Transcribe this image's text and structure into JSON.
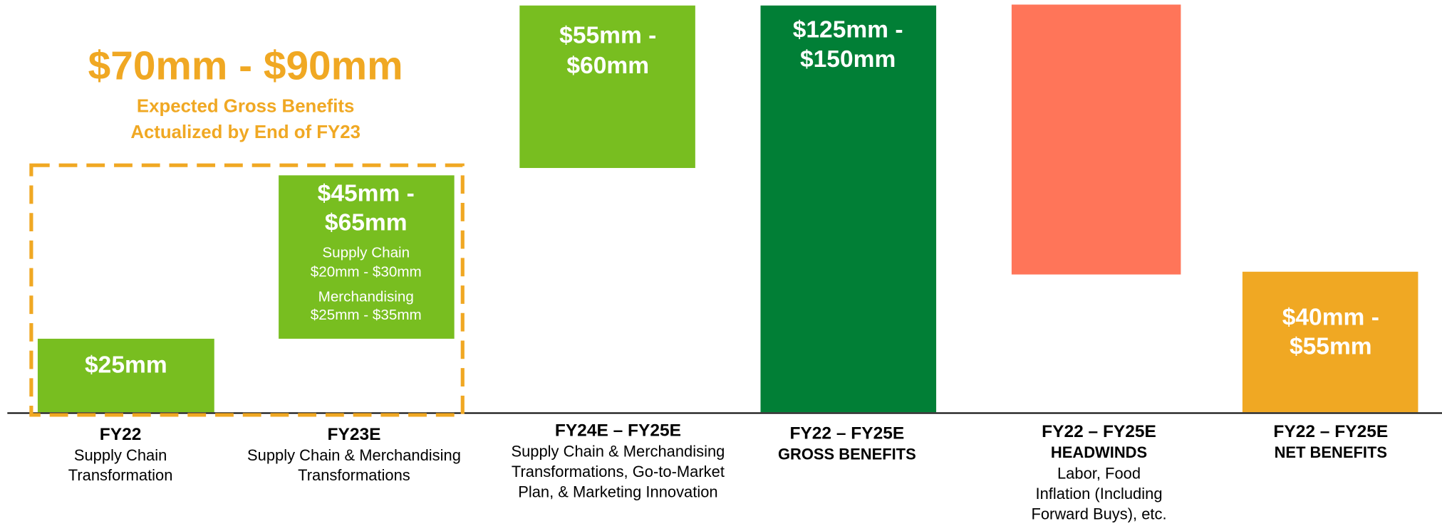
{
  "header": {
    "title": "$70mm - $90mm",
    "subtitle": [
      "Expected Gross Benefits",
      "Actualized by End of FY23"
    ]
  },
  "bars": [
    {
      "label": [
        "$25mm"
      ]
    },
    {
      "label": [
        "$45mm -",
        "$65mm"
      ],
      "details": [
        "Supply Chain",
        "$20mm - $30mm",
        "Merchandising",
        "$25mm - $35mm"
      ]
    },
    {
      "label": [
        "$55mm -",
        "$60mm"
      ]
    },
    {
      "label": [
        "$125mm -",
        "$150mm"
      ]
    },
    {
      "label": []
    },
    {
      "label": [
        "$40mm -",
        "$55mm"
      ]
    }
  ],
  "categories": [
    {
      "title": [
        "FY22"
      ],
      "description": [
        "Supply Chain",
        "Transformation"
      ]
    },
    {
      "title": [
        "FY23E"
      ],
      "description": [
        "Supply Chain & Merchandising",
        "Transformations"
      ]
    },
    {
      "title": [
        "FY24E – FY25E"
      ],
      "description": [
        "Supply Chain & Merchandising",
        "Transformations, Go-to-Market",
        "Plan, & Marketing Innovation"
      ]
    },
    {
      "title": [
        "FY22 – FY25E",
        "GROSS BENEFITS"
      ],
      "description": []
    },
    {
      "title": [
        "FY22 – FY25E",
        "HEADWINDS"
      ],
      "description": [
        "Labor, Food",
        "Inflation (Including",
        "Forward Buys), etc."
      ]
    },
    {
      "title": [
        "FY22 – FY25E",
        "NET BENEFITS"
      ],
      "description": []
    }
  ]
}
